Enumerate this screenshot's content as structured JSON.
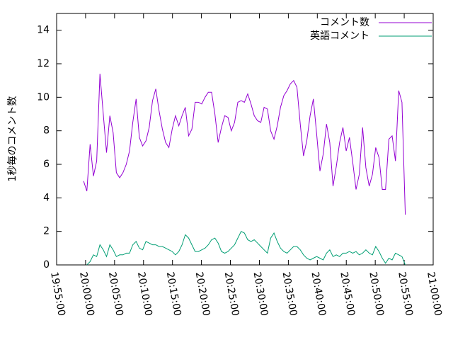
{
  "chart_data": {
    "type": "line",
    "ylabel": "1秒毎のコメント数",
    "xlim": [
      "19:55:00",
      "21:00:00"
    ],
    "xticks": [
      "19:55:00",
      "20:00:00",
      "20:05:00",
      "20:10:00",
      "20:15:00",
      "20:20:00",
      "20:25:00",
      "20:30:00",
      "20:35:00",
      "20:40:00",
      "20:45:00",
      "20:50:00",
      "20:55:00",
      "21:00:00"
    ],
    "ylim": [
      0,
      15
    ],
    "yticks": [
      0,
      2,
      4,
      6,
      8,
      10,
      12,
      14
    ],
    "legend": "top-right",
    "x": [
      "19:59:39",
      "20:00:13",
      "20:00:47",
      "20:01:21",
      "20:01:55",
      "20:02:29",
      "20:03:03",
      "20:03:37",
      "20:04:11",
      "20:04:45",
      "20:05:19",
      "20:05:53",
      "20:06:27",
      "20:07:01",
      "20:07:35",
      "20:08:09",
      "20:08:43",
      "20:09:17",
      "20:09:51",
      "20:10:25",
      "20:10:59",
      "20:11:33",
      "20:12:07",
      "20:12:41",
      "20:13:15",
      "20:13:49",
      "20:14:23",
      "20:14:57",
      "20:15:31",
      "20:16:05",
      "20:16:39",
      "20:17:13",
      "20:17:47",
      "20:18:21",
      "20:18:55",
      "20:19:29",
      "20:20:03",
      "20:20:37",
      "20:21:11",
      "20:21:45",
      "20:22:19",
      "20:22:53",
      "20:23:27",
      "20:24:01",
      "20:24:35",
      "20:25:09",
      "20:25:43",
      "20:26:17",
      "20:26:51",
      "20:27:25",
      "20:27:59",
      "20:28:33",
      "20:29:07",
      "20:29:41",
      "20:30:15",
      "20:30:49",
      "20:31:23",
      "20:31:57",
      "20:32:31",
      "20:33:05",
      "20:33:39",
      "20:34:13",
      "20:34:47",
      "20:35:21",
      "20:35:55",
      "20:36:29",
      "20:37:03",
      "20:37:37",
      "20:38:11",
      "20:38:45",
      "20:39:19",
      "20:39:53",
      "20:40:27",
      "20:41:01",
      "20:41:35",
      "20:42:09",
      "20:42:43",
      "20:43:17",
      "20:43:51",
      "20:44:25",
      "20:44:59",
      "20:45:33",
      "20:46:07",
      "20:46:41",
      "20:47:15",
      "20:47:49",
      "20:48:23",
      "20:48:57",
      "20:49:31",
      "20:50:05",
      "20:50:39",
      "20:51:13",
      "20:51:47",
      "20:52:21",
      "20:52:55",
      "20:53:29",
      "20:54:03",
      "20:54:37",
      "20:55:11"
    ],
    "series": [
      {
        "name": "コメント数",
        "color": "#9400d3",
        "values": [
          5.0,
          4.4,
          7.2,
          5.3,
          6.2,
          11.4,
          9.0,
          6.7,
          8.9,
          7.9,
          5.5,
          5.2,
          5.5,
          6.0,
          6.8,
          8.5,
          9.9,
          7.6,
          7.1,
          7.4,
          8.2,
          9.8,
          10.5,
          9.2,
          8.1,
          7.3,
          7.0,
          8.1,
          8.9,
          8.3,
          8.9,
          9.4,
          7.7,
          8.1,
          9.7,
          9.7,
          9.6,
          10.0,
          10.3,
          10.3,
          9.0,
          7.3,
          8.2,
          8.9,
          8.8,
          8.0,
          8.5,
          9.7,
          9.8,
          9.7,
          10.2,
          9.6,
          8.9,
          8.6,
          8.5,
          9.4,
          9.3,
          8.0,
          7.5,
          8.3,
          9.4,
          10.1,
          10.4,
          10.8,
          11.0,
          10.6,
          8.4,
          6.5,
          7.4,
          8.9,
          9.9,
          7.8,
          5.6,
          6.6,
          8.4,
          7.3,
          4.7,
          5.9,
          7.3,
          8.2,
          6.8,
          7.6,
          6.1,
          4.5,
          5.4,
          8.2,
          5.8,
          4.7,
          5.4,
          7.0,
          6.4,
          4.5,
          4.5,
          7.5,
          7.7,
          6.2,
          10.4,
          9.7,
          3.0
        ]
      },
      {
        "name": "英語コメント",
        "color": "#009e73",
        "values": [
          null,
          0.0,
          0.2,
          0.6,
          0.5,
          1.2,
          0.9,
          0.5,
          1.2,
          0.9,
          0.5,
          0.6,
          0.6,
          0.7,
          0.7,
          1.2,
          1.4,
          1.0,
          0.9,
          1.4,
          1.3,
          1.2,
          1.2,
          1.1,
          1.1,
          1.0,
          0.9,
          0.8,
          0.6,
          0.8,
          1.2,
          1.8,
          1.6,
          1.2,
          0.8,
          0.8,
          0.9,
          1.0,
          1.2,
          1.5,
          1.6,
          1.3,
          0.8,
          0.7,
          0.8,
          1.0,
          1.2,
          1.6,
          2.0,
          1.9,
          1.5,
          1.4,
          1.5,
          1.3,
          1.1,
          0.9,
          0.7,
          1.6,
          1.9,
          1.4,
          1.0,
          0.8,
          0.7,
          0.9,
          1.1,
          1.1,
          0.9,
          0.6,
          0.4,
          0.3,
          0.4,
          0.5,
          0.4,
          0.3,
          0.7,
          0.9,
          0.5,
          0.6,
          0.5,
          0.7,
          0.7,
          0.8,
          0.7,
          0.8,
          0.6,
          0.7,
          0.9,
          0.7,
          0.6,
          1.1,
          0.8,
          0.4,
          0.1,
          0.4,
          0.3,
          0.7,
          0.6,
          0.5,
          0.0
        ]
      }
    ]
  }
}
